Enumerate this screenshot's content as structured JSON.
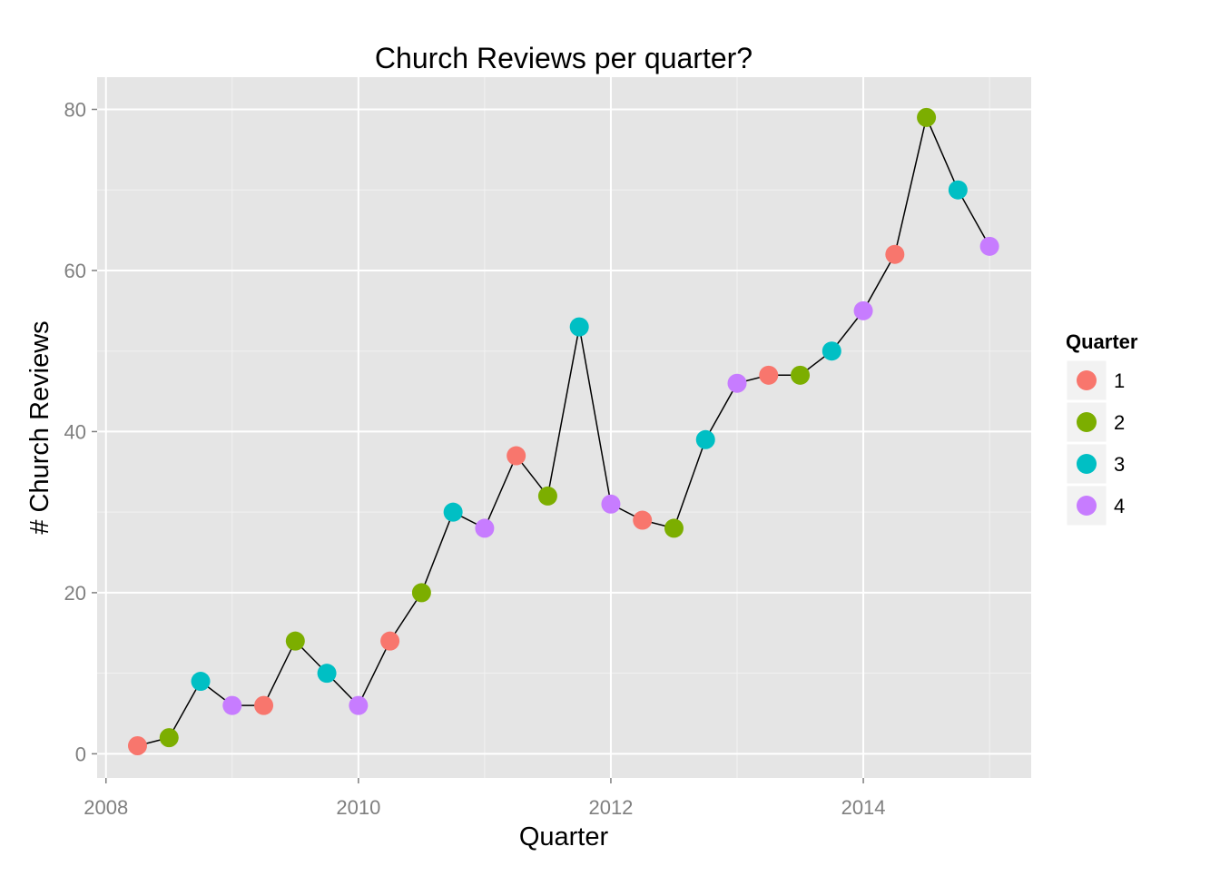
{
  "chart_data": {
    "type": "scatter",
    "title": "Church Reviews per quarter?",
    "xlabel": "Quarter",
    "ylabel": "# Church Reviews",
    "xlim": [
      2007.93,
      2015.33
    ],
    "ylim": [
      -3,
      84
    ],
    "x_ticks": [
      2008,
      2010,
      2012,
      2014
    ],
    "y_ticks": [
      0,
      20,
      40,
      60,
      80
    ],
    "grid": true,
    "legend": {
      "title": "Quarter",
      "placement": "right",
      "entries": [
        {
          "label": "1",
          "color": "#F8766D"
        },
        {
          "label": "2",
          "color": "#7CAE00"
        },
        {
          "label": "3",
          "color": "#00BFC4"
        },
        {
          "label": "4",
          "color": "#C77CFF"
        }
      ]
    },
    "line_color": "#000000",
    "points": [
      {
        "x": 2008.25,
        "y": 1,
        "quarter": "1"
      },
      {
        "x": 2008.5,
        "y": 2,
        "quarter": "2"
      },
      {
        "x": 2008.75,
        "y": 9,
        "quarter": "3"
      },
      {
        "x": 2009.0,
        "y": 6,
        "quarter": "4"
      },
      {
        "x": 2009.25,
        "y": 6,
        "quarter": "1"
      },
      {
        "x": 2009.5,
        "y": 14,
        "quarter": "2"
      },
      {
        "x": 2009.75,
        "y": 10,
        "quarter": "3"
      },
      {
        "x": 2010.0,
        "y": 6,
        "quarter": "4"
      },
      {
        "x": 2010.25,
        "y": 14,
        "quarter": "1"
      },
      {
        "x": 2010.5,
        "y": 20,
        "quarter": "2"
      },
      {
        "x": 2010.75,
        "y": 30,
        "quarter": "3"
      },
      {
        "x": 2011.0,
        "y": 28,
        "quarter": "4"
      },
      {
        "x": 2011.25,
        "y": 37,
        "quarter": "1"
      },
      {
        "x": 2011.5,
        "y": 32,
        "quarter": "2"
      },
      {
        "x": 2011.75,
        "y": 53,
        "quarter": "3"
      },
      {
        "x": 2012.0,
        "y": 31,
        "quarter": "4"
      },
      {
        "x": 2012.25,
        "y": 29,
        "quarter": "1"
      },
      {
        "x": 2012.5,
        "y": 28,
        "quarter": "2"
      },
      {
        "x": 2012.75,
        "y": 39,
        "quarter": "3"
      },
      {
        "x": 2013.0,
        "y": 46,
        "quarter": "4"
      },
      {
        "x": 2013.25,
        "y": 47,
        "quarter": "1"
      },
      {
        "x": 2013.5,
        "y": 47,
        "quarter": "2"
      },
      {
        "x": 2013.75,
        "y": 50,
        "quarter": "3"
      },
      {
        "x": 2014.0,
        "y": 55,
        "quarter": "4"
      },
      {
        "x": 2014.25,
        "y": 62,
        "quarter": "1"
      },
      {
        "x": 2014.5,
        "y": 79,
        "quarter": "2"
      },
      {
        "x": 2014.75,
        "y": 70,
        "quarter": "3"
      },
      {
        "x": 2015.0,
        "y": 63,
        "quarter": "4"
      }
    ]
  }
}
